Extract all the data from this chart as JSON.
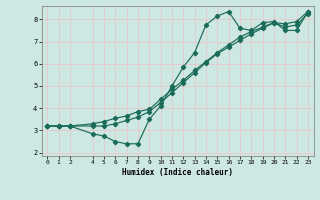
{
  "xlabel": "Humidex (Indice chaleur)",
  "bg_color": "#cde8e2",
  "grid_color": "#e8c8c8",
  "line_color": "#1a6b5a",
  "xlim": [
    -0.5,
    23.5
  ],
  "ylim": [
    1.85,
    8.6
  ],
  "yticks": [
    2,
    3,
    4,
    5,
    6,
    7,
    8
  ],
  "xticks": [
    0,
    1,
    2,
    4,
    5,
    6,
    7,
    8,
    9,
    10,
    11,
    12,
    13,
    14,
    15,
    16,
    17,
    18,
    19,
    20,
    21,
    22,
    23
  ],
  "curve1_x": [
    0,
    1,
    2,
    4,
    5,
    6,
    7,
    8,
    9,
    10,
    11,
    12,
    13,
    14,
    15,
    16,
    17,
    18,
    19,
    20,
    21,
    22,
    23
  ],
  "curve1_y": [
    3.2,
    3.2,
    3.2,
    2.85,
    2.75,
    2.5,
    2.4,
    2.4,
    3.5,
    4.1,
    5.0,
    5.85,
    6.5,
    7.75,
    8.15,
    8.35,
    7.6,
    7.5,
    7.85,
    7.9,
    7.5,
    7.5,
    8.35
  ],
  "curve2_x": [
    0,
    1,
    2,
    4,
    5,
    6,
    7,
    8,
    9,
    10,
    11,
    12,
    13,
    14,
    15,
    16,
    17,
    18,
    19,
    20,
    21,
    22,
    23
  ],
  "curve2_y": [
    3.2,
    3.2,
    3.2,
    3.3,
    3.4,
    3.55,
    3.65,
    3.85,
    3.95,
    4.4,
    4.85,
    5.25,
    5.7,
    6.1,
    6.5,
    6.85,
    7.2,
    7.45,
    7.65,
    7.85,
    7.8,
    7.9,
    8.35
  ],
  "curve3_x": [
    0,
    1,
    2,
    4,
    5,
    6,
    7,
    8,
    9,
    10,
    11,
    12,
    13,
    14,
    15,
    16,
    17,
    18,
    19,
    20,
    21,
    22,
    23
  ],
  "curve3_y": [
    3.2,
    3.2,
    3.2,
    3.2,
    3.2,
    3.3,
    3.45,
    3.6,
    3.85,
    4.25,
    4.7,
    5.15,
    5.6,
    6.05,
    6.45,
    6.75,
    7.05,
    7.35,
    7.6,
    7.85,
    7.65,
    7.75,
    8.25
  ]
}
